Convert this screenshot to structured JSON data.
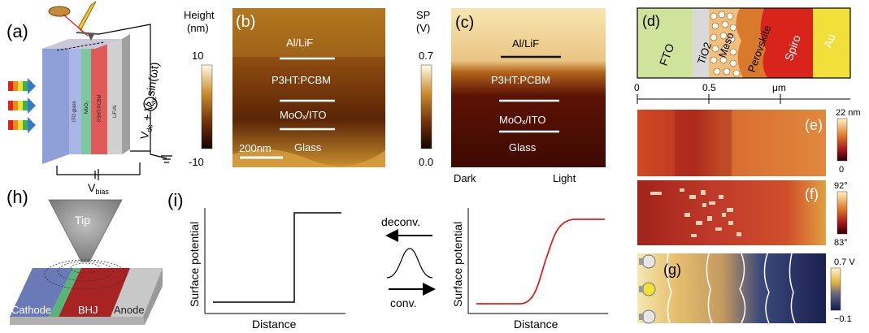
{
  "panel_labels": {
    "a": "(a)",
    "b": "(b)",
    "c": "(c)",
    "d": "(d)",
    "e": "(e)",
    "f": "(f)",
    "g": "(g)",
    "h": "(h)",
    "i": "(i)"
  },
  "panel_a": {
    "layers": [
      "ITO glass",
      "MoO₃",
      "P3HT:PCBM",
      "LiF/Al"
    ],
    "voltage_label": "Vₑₑ + Vₐₑsin(ωt)",
    "vdc": "V",
    "vdc_sub": "dc",
    "plus": " + ",
    "vac": "V",
    "vac_sub": "ac",
    "sin": "sin(ωt)",
    "bias": "V",
    "bias_sub": "bias"
  },
  "panel_b": {
    "colorbar_title_1": "Height",
    "colorbar_title_2": "(nm)",
    "cb_max": "10",
    "cb_min": "-10",
    "layers": [
      "Al/LiF",
      "P3HT:PCBM",
      "MoOₓ/ITO",
      "Glass"
    ],
    "scalebar": "200nm"
  },
  "panel_c": {
    "colorbar_title_1": "SP",
    "colorbar_title_2": "(V)",
    "cb_max": "0.7",
    "cb_min": "0.0",
    "layers": [
      "Al/LiF",
      "P3HT:PCBM",
      "MoOₓ/ITO",
      "Glass"
    ],
    "dark": "Dark",
    "light": "Light"
  },
  "panel_d": {
    "layers": [
      "FTO",
      "TiO2",
      "Meso",
      "Perovskite",
      "Spiro",
      "Au"
    ],
    "axis_ticks": [
      "0",
      "0.5",
      "μm"
    ]
  },
  "panel_e": {
    "cb_max": "22 nm",
    "cb_min": "0"
  },
  "panel_f": {
    "cb_max": "92°",
    "cb_min": "83°"
  },
  "panel_g": {
    "cb_max": "0.7 V",
    "cb_min": "−0.1"
  },
  "panel_h": {
    "tip": "Tip",
    "cathode": "Cathode",
    "bhj": "BHJ",
    "anode": "Anode"
  },
  "panel_i": {
    "ylabel": "Surface potential",
    "xlabel": "Distance",
    "deconv": "deconv.",
    "conv": "conv."
  },
  "colors": {
    "fto": "#cfe39a",
    "tio2": "#d9d9d9",
    "meso": "#e8a65a",
    "perovskite": "#d9792b",
    "spiro": "#d9241c",
    "au": "#f2e03a",
    "red_curve": "#d9241c"
  }
}
